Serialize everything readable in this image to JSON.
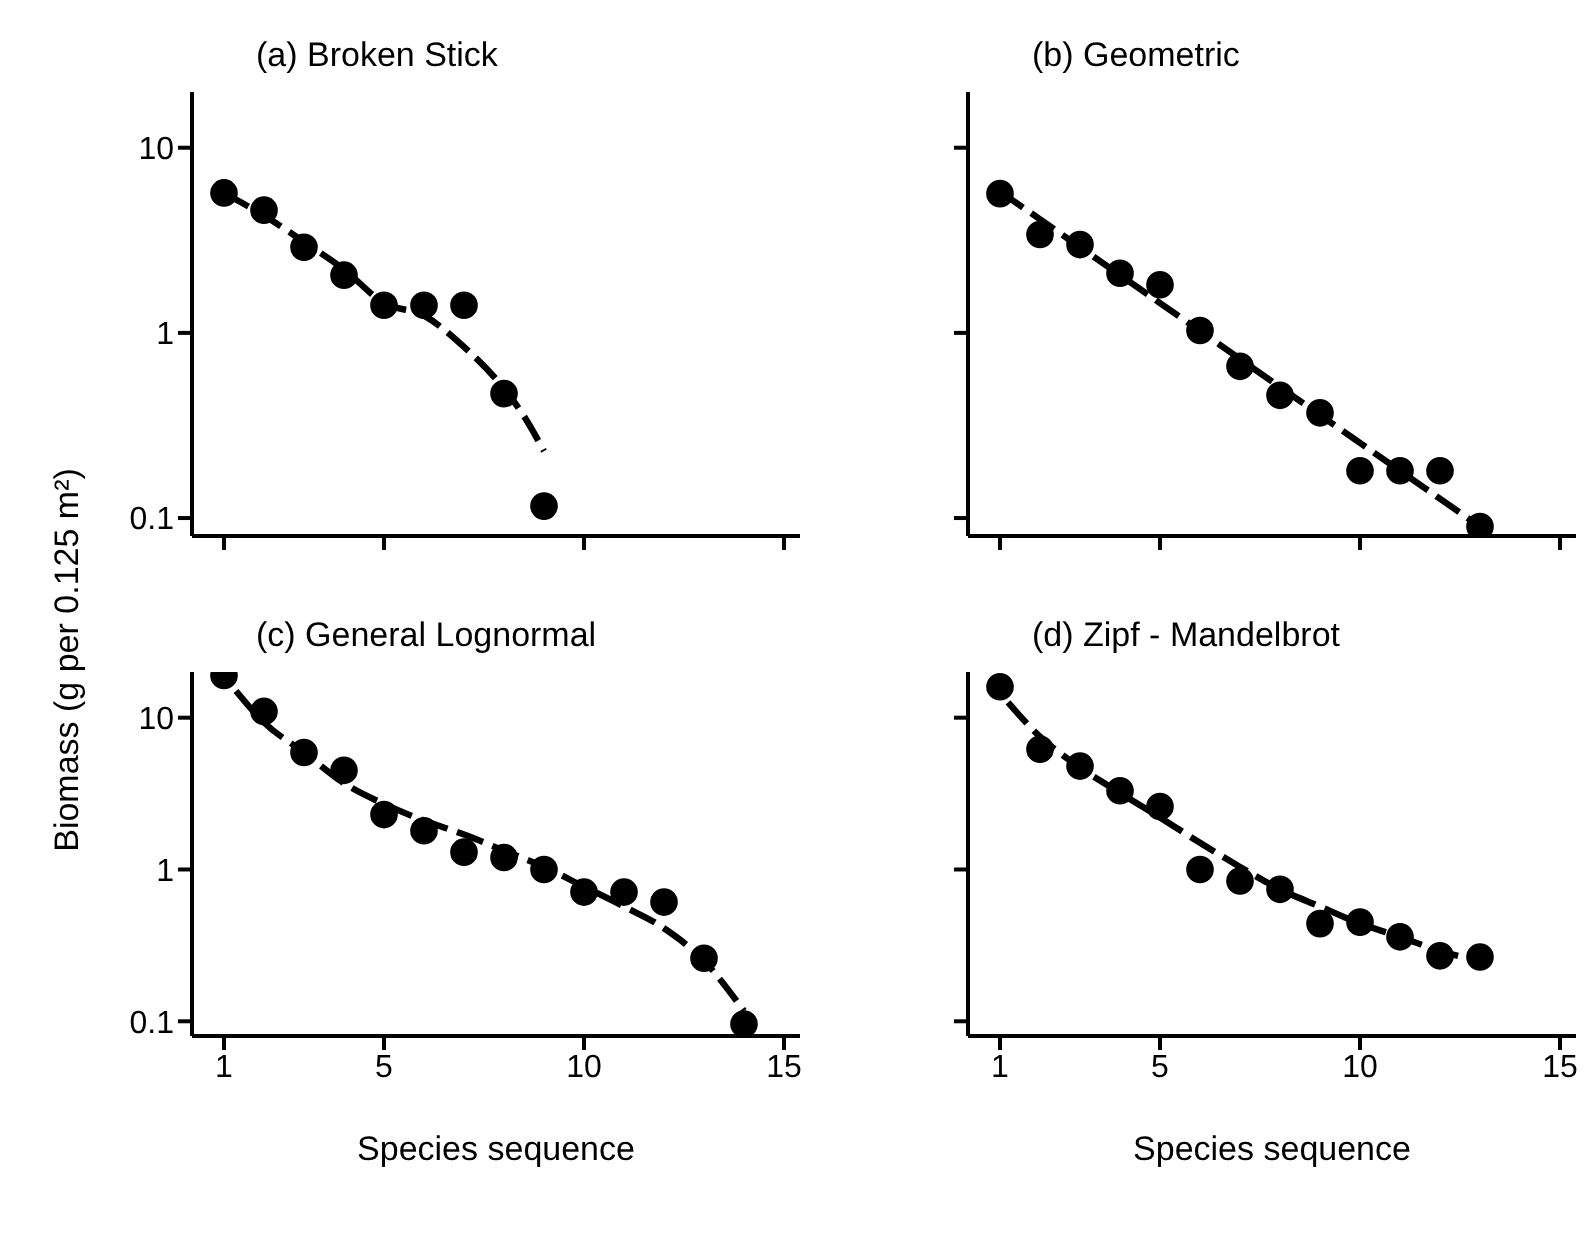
{
  "chart_data": [
    {
      "type": "scatter",
      "title": "(a)  Broken Stick",
      "ylabel": "Biomass (g per 0.125 m²)",
      "x": [
        1,
        2,
        3,
        4,
        5,
        6,
        7,
        8,
        9
      ],
      "xlim": [
        0.2,
        15.4
      ],
      "xticks": [
        1,
        5,
        10,
        15
      ],
      "ylim": [
        0.08,
        20
      ],
      "yticks": [
        0.1,
        1,
        10
      ],
      "log": "y",
      "tick_labels": "y",
      "line_style": "dashed",
      "series": [
        {
          "marker": "circle",
          "color": "#000000",
          "values": [
            5.7,
            4.6,
            2.9,
            2.05,
            1.41,
            1.41,
            1.41,
            0.47,
            0.116
          ]
        },
        {
          "type": "line",
          "marker": "none",
          "color": "#000000",
          "x": [
            1,
            2,
            3,
            4,
            5,
            6,
            7,
            8,
            8.5,
            9
          ],
          "values": [
            5.7,
            4.3,
            3.1,
            2.2,
            1.45,
            1.24,
            0.84,
            0.5,
            0.355,
            0.23
          ]
        }
      ]
    },
    {
      "type": "scatter",
      "title": "(b)  Geometric",
      "x": [
        1,
        2,
        3,
        4,
        5,
        6,
        7,
        8,
        9,
        10,
        11,
        12,
        13
      ],
      "xlim": [
        0.2,
        15.4
      ],
      "xticks": [
        1,
        5,
        10,
        15
      ],
      "ylim": [
        0.08,
        20
      ],
      "yticks": [
        0.1,
        1,
        10
      ],
      "log": "y",
      "tick_labels": false,
      "line_style": "dashed",
      "series": [
        {
          "marker": "circle",
          "color": "#000000",
          "values": [
            5.65,
            3.4,
            3.0,
            2.1,
            1.82,
            1.03,
            0.66,
            0.46,
            0.37,
            0.18,
            0.18,
            0.18,
            0.09
          ]
        },
        {
          "type": "line",
          "marker": "none",
          "color": "#000000",
          "x": [
            1,
            5,
            9,
            13
          ],
          "values": [
            5.8,
            1.45,
            0.36,
            0.09
          ]
        }
      ]
    },
    {
      "type": "scatter",
      "title": "(c)  General Lognormal",
      "xlabel": "Species sequence",
      "x": [
        1,
        2,
        3,
        4,
        5,
        6,
        7,
        8,
        9,
        10,
        11,
        12,
        13,
        14
      ],
      "xlim": [
        0.2,
        15.4
      ],
      "xticks": [
        1,
        5,
        10,
        15
      ],
      "ylim": [
        0.08,
        20
      ],
      "yticks": [
        0.1,
        1,
        10
      ],
      "log": "y",
      "line_style": "dashed",
      "series": [
        {
          "marker": "circle",
          "color": "#000000",
          "values": [
            19,
            11,
            5.9,
            4.5,
            2.3,
            1.8,
            1.3,
            1.2,
            1.0,
            0.71,
            0.71,
            0.61,
            0.26,
            0.096
          ]
        },
        {
          "type": "line",
          "marker": "none",
          "color": "#000000",
          "x": [
            1.3,
            2,
            3,
            4,
            5,
            6,
            7,
            8,
            9,
            10,
            11,
            12,
            13,
            14
          ],
          "values": [
            15,
            9.3,
            5.9,
            3.7,
            2.7,
            2.1,
            1.7,
            1.33,
            1.04,
            0.77,
            0.57,
            0.41,
            0.25,
            0.117
          ]
        }
      ]
    },
    {
      "type": "scatter",
      "title": "(d)  Zipf - Mandelbrot",
      "xlabel": "Species sequence",
      "x": [
        1,
        2,
        3,
        4,
        5,
        6,
        7,
        8,
        9,
        10,
        11,
        12,
        13
      ],
      "xlim": [
        0.2,
        15.4
      ],
      "xticks": [
        1,
        5,
        10,
        15
      ],
      "ylim": [
        0.08,
        20
      ],
      "yticks": [
        0.1,
        1,
        10
      ],
      "log": "y",
      "tick_labels": "x",
      "line_style": "dashed",
      "series": [
        {
          "marker": "circle",
          "color": "#000000",
          "values": [
            16,
            6.2,
            4.8,
            3.3,
            2.6,
            1.0,
            0.84,
            0.74,
            0.44,
            0.45,
            0.36,
            0.27,
            0.265
          ]
        },
        {
          "type": "line",
          "marker": "none",
          "color": "#000000",
          "x": [
            1.2,
            2,
            3,
            4,
            5,
            6,
            7,
            8,
            9,
            10,
            11,
            12,
            13
          ],
          "values": [
            12.6,
            7.5,
            4.7,
            3.2,
            2.2,
            1.5,
            1.04,
            0.74,
            0.57,
            0.44,
            0.36,
            0.29,
            0.25
          ]
        }
      ]
    }
  ]
}
